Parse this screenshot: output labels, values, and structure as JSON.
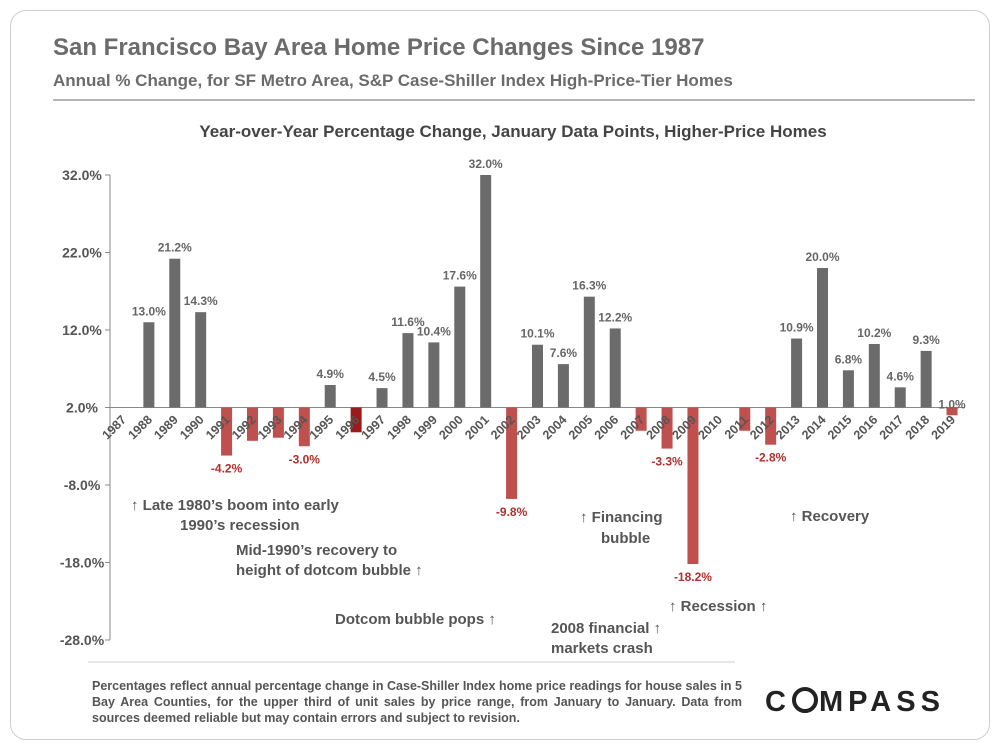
{
  "header": {
    "title": "San Francisco Bay Area Home Price Changes Since 1987",
    "subtitle": "Annual % Change, for SF Metro Area, S&P Case-Shiller Index High-Price-Tier Homes"
  },
  "chart_data": {
    "type": "bar",
    "title": "Year-over-Year Percentage Change, January Data Points, Higher-Price Homes",
    "xlabel": "",
    "ylabel": "",
    "ylim": [
      -28,
      32
    ],
    "yticks": [
      32,
      22,
      12,
      2,
      -8,
      -18,
      -28
    ],
    "ytick_labels": [
      "32.0%",
      "22.0%",
      "12.0%",
      "2.0%",
      "-8.0%",
      "-18.0%",
      "-28.0%"
    ],
    "baseline": 2,
    "categories": [
      "1987",
      "1988",
      "1989",
      "1990",
      "1991",
      "1992",
      "1993",
      "1994",
      "1995",
      "1996",
      "1997",
      "1998",
      "1999",
      "2000",
      "2001",
      "2002",
      "2003",
      "2004",
      "2005",
      "2006",
      "2007",
      "2008",
      "2009",
      "2010",
      "2011",
      "2012",
      "2013",
      "2014",
      "2015",
      "2016",
      "2017",
      "2018",
      "2019"
    ],
    "values": [
      null,
      13.0,
      21.2,
      14.3,
      -4.2,
      -2.3,
      -1.9,
      -3.0,
      4.9,
      -1.2,
      4.5,
      11.6,
      10.4,
      17.6,
      32.0,
      -9.8,
      10.1,
      7.6,
      16.3,
      12.2,
      -1.0,
      -3.3,
      -18.2,
      null,
      -1.0,
      -2.8,
      10.9,
      20.0,
      6.8,
      10.2,
      4.6,
      9.3,
      1.0
    ],
    "data_labels": [
      "",
      "13.0%",
      "21.2%",
      "14.3%",
      "-4.2%",
      "",
      "",
      "-3.0%",
      "4.9%",
      "",
      "4.5%",
      "11.6%",
      "10.4%",
      "17.6%",
      "32.0%",
      "-9.8%",
      "10.1%",
      "7.6%",
      "16.3%",
      "12.2%",
      "",
      "-3.3%",
      "-18.2%",
      "",
      "",
      "-2.8%",
      "10.9%",
      "20.0%",
      "6.8%",
      "10.2%",
      "4.6%",
      "9.3%",
      "1.0%"
    ],
    "colors": {
      "positive": "#6b6b6b",
      "negative": "#c0504d",
      "negative_dark": "#9c1a1a",
      "negative_label": "#b0302d",
      "axis": "#888888"
    },
    "annotations": [
      "↑ Late 1980’s boom into early",
      "1990’s recession",
      "Mid-1990’s recovery to",
      "height of dotcom bubble ↑",
      "Dotcom bubble pops ↑",
      "↑ Financing",
      "bubble",
      "2008 financial ↑",
      "markets crash",
      "↑ Recession ↑",
      "↑ Recovery"
    ]
  },
  "footnote": "Percentages reflect annual percentage change in Case-Shiller Index home price readings for house sales in 5 Bay Area Counties, for the upper third of unit sales by price range, from January to January. Data from sources deemed reliable but may contain errors and subject to revision.",
  "logo": {
    "text": "COMPASS",
    "before_ring": "C",
    "after_ring": "MPASS"
  }
}
